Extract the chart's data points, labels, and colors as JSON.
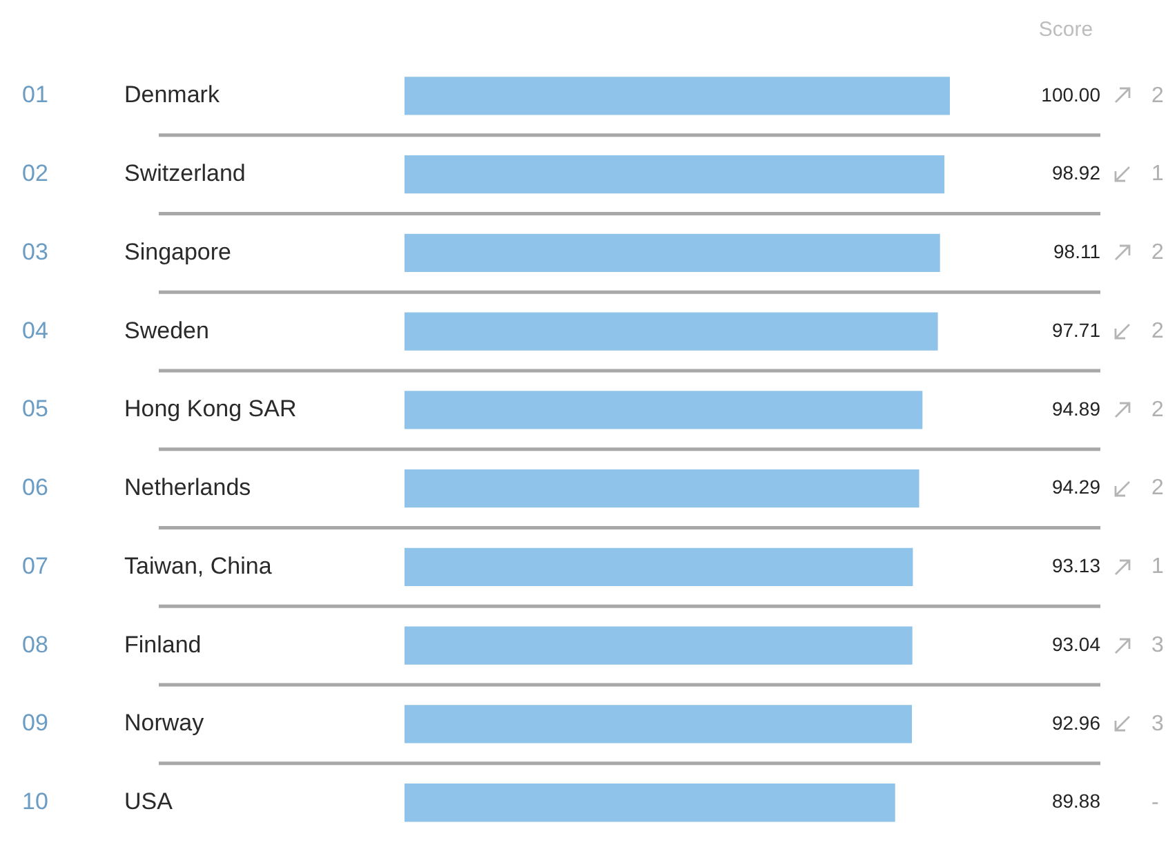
{
  "chart_data": {
    "type": "bar",
    "orientation": "horizontal",
    "xlabel": "Score",
    "categories": [
      "Denmark",
      "Switzerland",
      "Singapore",
      "Sweden",
      "Hong Kong SAR",
      "Netherlands",
      "Taiwan, China",
      "Finland",
      "Norway",
      "USA"
    ],
    "values": [
      100.0,
      98.92,
      98.11,
      97.71,
      94.89,
      94.29,
      93.13,
      93.04,
      92.96,
      89.88
    ],
    "value_labels": [
      "100.00",
      "98.92",
      "98.11",
      "97.71",
      "94.89",
      "94.29",
      "93.13",
      "93.04",
      "92.96",
      "89.88"
    ],
    "color": "#8fc3e9",
    "xlim": [
      0,
      100
    ],
    "tick_labels": "y",
    "grid": "y",
    "legend": false,
    "annotations": [
      "01",
      "02",
      "03",
      "04",
      "05",
      "06",
      "07",
      "08",
      "09",
      "10",
      "2",
      "1",
      "2",
      "2",
      "2",
      "2",
      "1",
      "3",
      "3",
      "-"
    ]
  }
}
